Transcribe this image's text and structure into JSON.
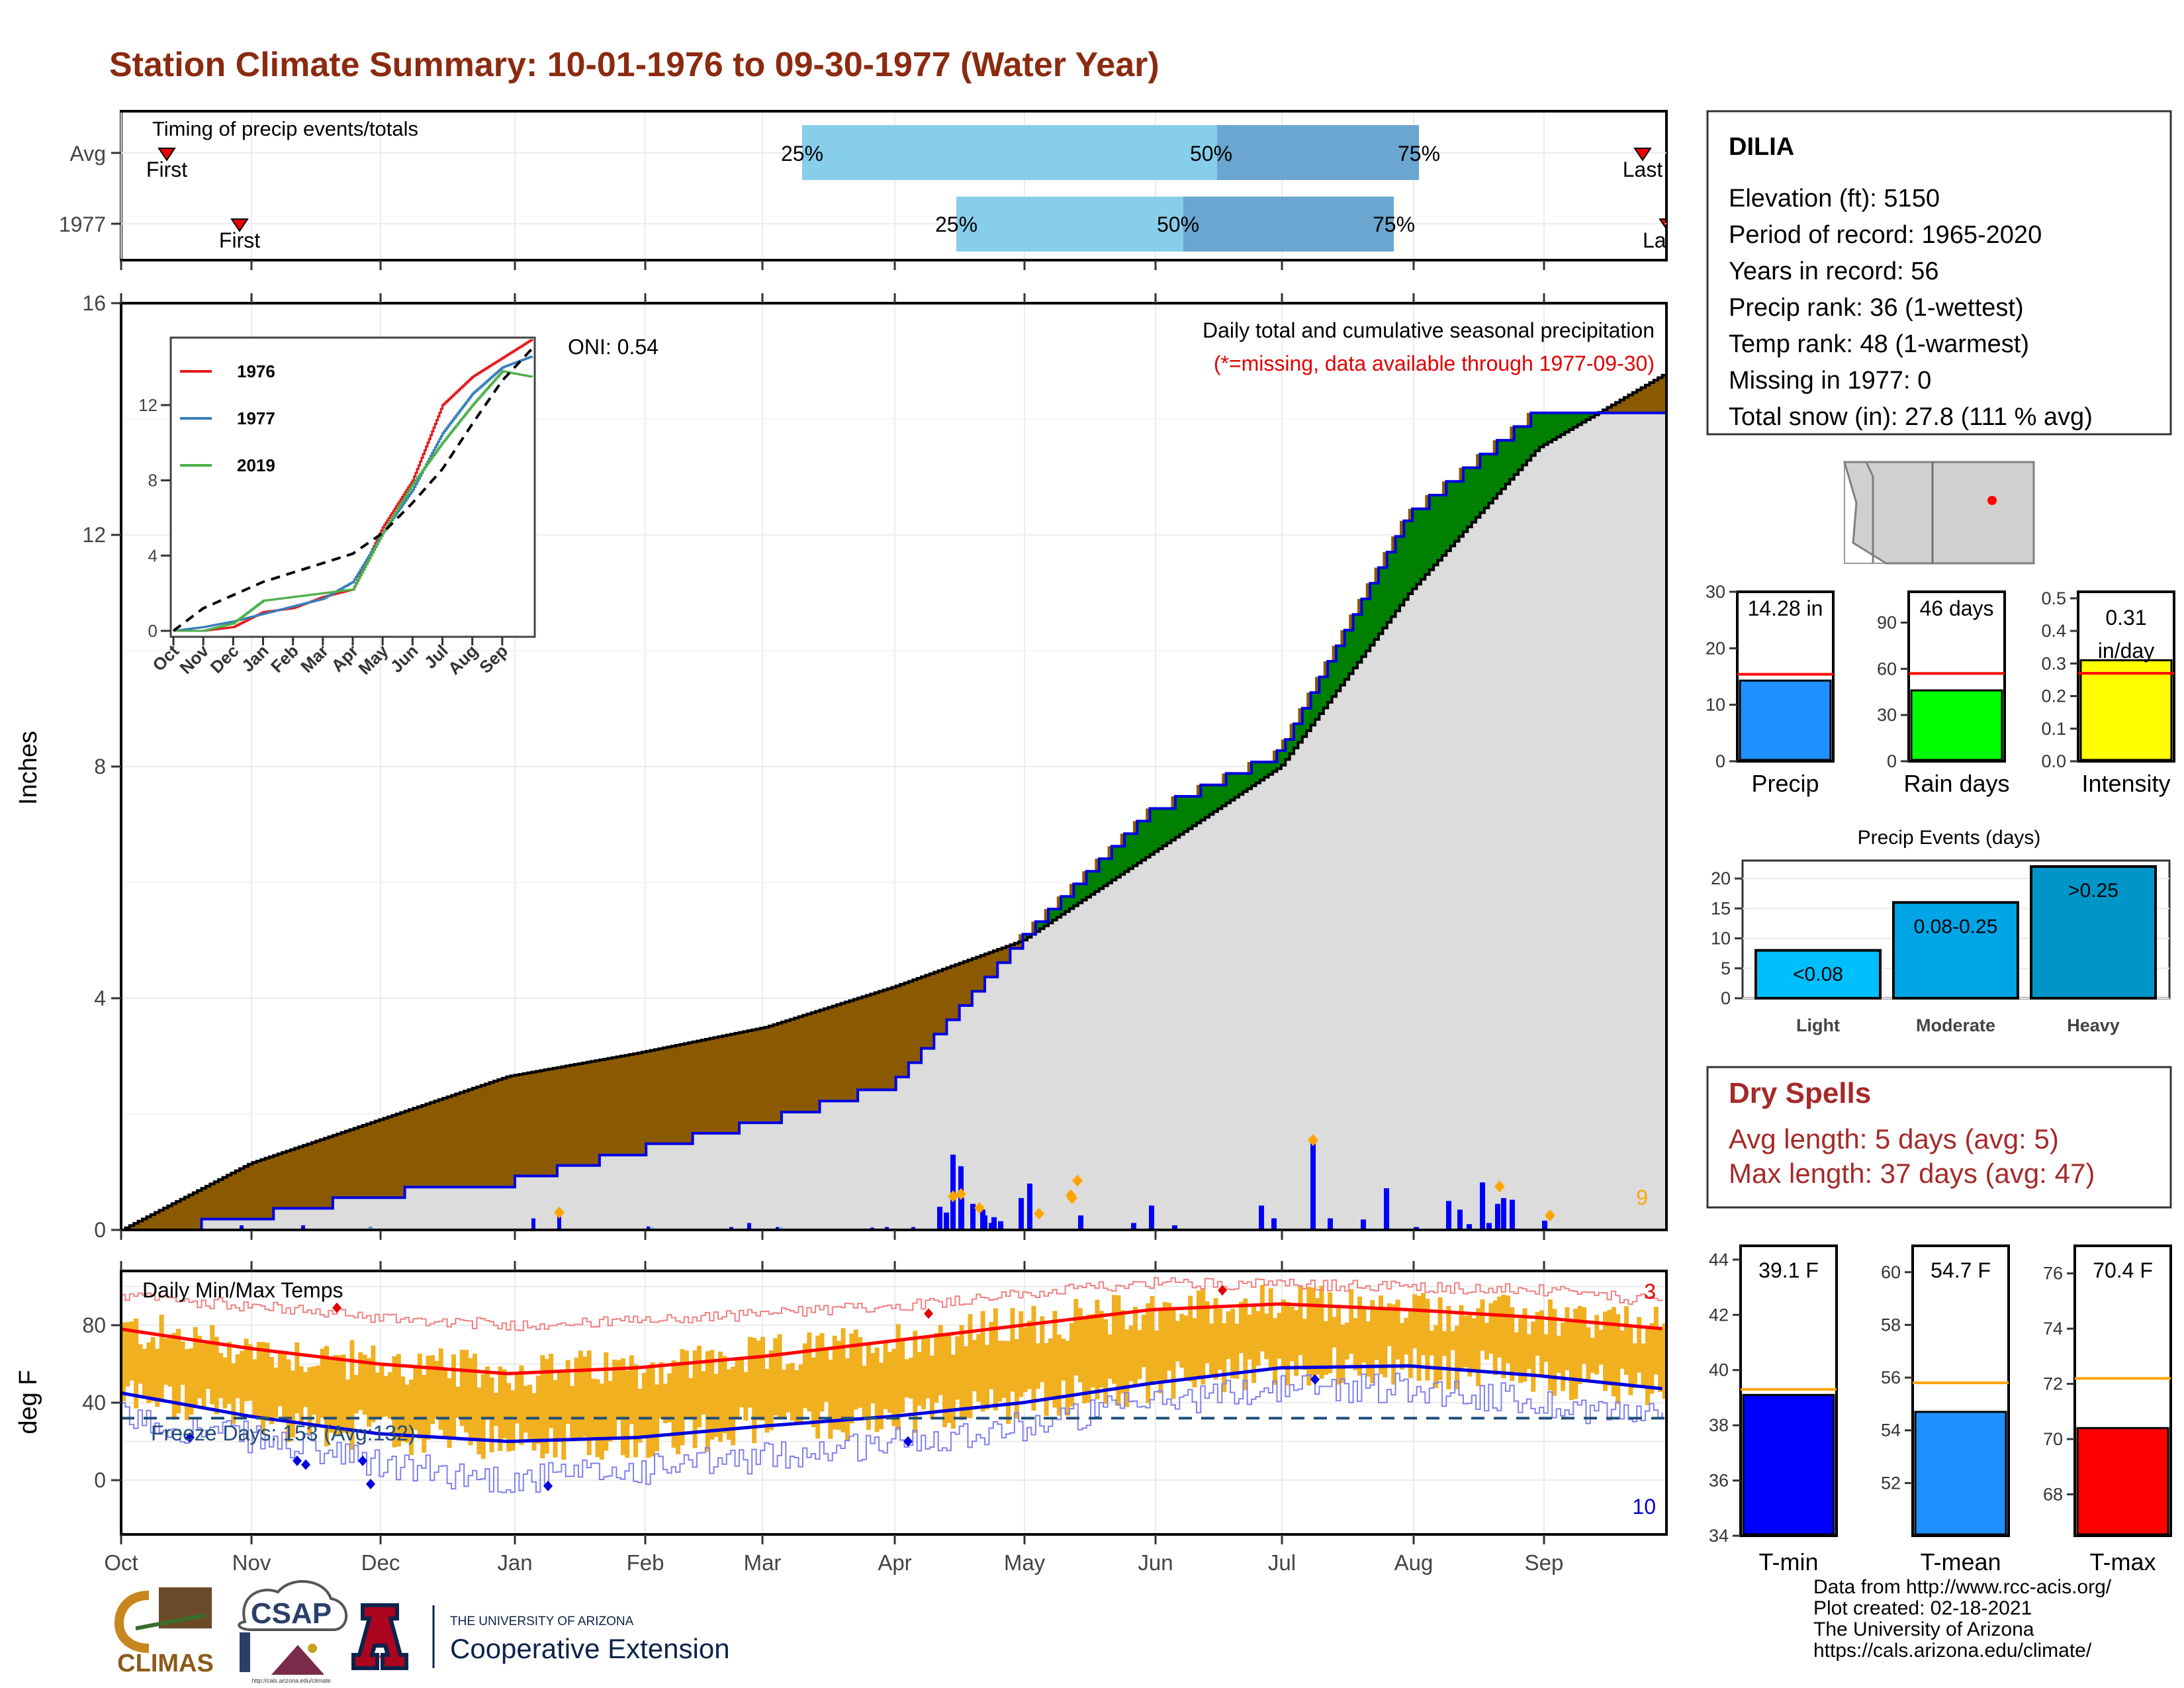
{
  "title": "Station Climate Summary: 10-01-1976 to 09-30-1977 (Water Year)",
  "timing": {
    "label": "Timing of precip events/totals",
    "rows": [
      "Avg",
      "1977"
    ],
    "avg": {
      "first": "First",
      "last": "Last",
      "p25": "25%",
      "p50": "50%",
      "p75": "75%"
    },
    "year": {
      "first": "First",
      "last": "Last",
      "p25": "25%",
      "p50": "50%",
      "p75": "75%"
    }
  },
  "precip_panel": {
    "ylabel": "Inches",
    "oni": "ONI: 0.54",
    "header": "Daily total and cumulative seasonal precipitation",
    "subheader": "(*=missing, data available through 1977-09-30)",
    "count": "9",
    "yticks": [
      "0",
      "4",
      "8",
      "12",
      "16"
    ]
  },
  "inset": {
    "yticks": [
      "0",
      "4",
      "8",
      "12"
    ],
    "xticks": [
      "Oct",
      "Nov",
      "Dec",
      "Jan",
      "Feb",
      "Mar",
      "Apr",
      "May",
      "Jun",
      "Jul",
      "Aug",
      "Sep"
    ],
    "legend": [
      "1976",
      "1977",
      "2019"
    ],
    "colors": [
      "#e41a1c",
      "#377eb8",
      "#4daf4a"
    ]
  },
  "temp_panel": {
    "label": "Daily Min/Max Temps",
    "ylabel": "deg F",
    "freeze": "Freeze Days: 153 (Avg:132)",
    "count_hi": "3",
    "count_lo": "10",
    "yticks": [
      "0",
      "40",
      "80"
    ]
  },
  "months": [
    "Oct",
    "Nov",
    "Dec",
    "Jan",
    "Feb",
    "Mar",
    "Apr",
    "May",
    "Jun",
    "Jul",
    "Aug",
    "Sep"
  ],
  "station": {
    "name": "DILIA",
    "lines": [
      "Elevation (ft): 5150",
      "Period of record: 1965-2020",
      "Years in record: 56",
      "Precip rank: 36 (1-wettest)",
      "Temp rank: 48 (1-warmest)",
      "Missing in 1977: 0",
      "Total snow (in): 27.8 (111 % avg)"
    ]
  },
  "mini_bars": [
    {
      "label": "Precip",
      "value_text": "14.28 in",
      "value": 14.28,
      "avg": 15.4,
      "max": 30,
      "ticks": [
        "0",
        "10",
        "20",
        "30"
      ],
      "color": "#1e90ff"
    },
    {
      "label": "Rain days",
      "value_text": "46 days",
      "value": 46,
      "avg": 57,
      "max": 110,
      "ticks": [
        "0",
        "30",
        "60",
        "90"
      ],
      "color": "#00ff00"
    },
    {
      "label": "Intensity",
      "value_text": "0.31 in/day",
      "value_line1": "0.31",
      "value_line2": "in/day",
      "value": 0.31,
      "avg": 0.27,
      "max": 0.52,
      "ticks": [
        "0.0",
        "0.1",
        "0.2",
        "0.3",
        "0.4",
        "0.5"
      ],
      "color": "#ffff00"
    }
  ],
  "events": {
    "title": "Precip Events (days)",
    "categories": [
      "Light",
      "Moderate",
      "Heavy"
    ],
    "labels": [
      "<0.08",
      "0.08-0.25",
      ">0.25"
    ],
    "values": [
      8,
      16,
      22
    ],
    "colors": [
      "#00bfff",
      "#00a5e6",
      "#0095c8"
    ],
    "yticks": [
      "0",
      "5",
      "10",
      "15",
      "20"
    ]
  },
  "dry_spells": {
    "title": "Dry Spells",
    "avg": "Avg length: 5 days (avg: 5)",
    "max": "Max length: 37 days (avg: 47)"
  },
  "temp_bars": [
    {
      "label": "T-min",
      "value_text": "39.1 F",
      "value": 39.1,
      "avg": 39.3,
      "min": 34,
      "max": 44.5,
      "ticks": [
        "34",
        "36",
        "38",
        "40",
        "42",
        "44"
      ],
      "color": "#0000ff"
    },
    {
      "label": "T-mean",
      "value_text": "54.7 F",
      "value": 54.7,
      "avg": 55.8,
      "min": 50,
      "max": 61,
      "ticks": [
        "52",
        "54",
        "56",
        "58",
        "60"
      ],
      "color": "#1e90ff"
    },
    {
      "label": "T-max",
      "value_text": "70.4 F",
      "value": 70.4,
      "avg": 72.2,
      "min": 66.5,
      "max": 77,
      "ticks": [
        "68",
        "70",
        "72",
        "74",
        "76"
      ],
      "color": "#ff0000"
    }
  ],
  "footer": [
    "Data from http://www.rcc-acis.org/",
    "Plot created: 02-18-2021",
    "The University of Arizona",
    "https://cals.arizona.edu/climate/"
  ],
  "logos": {
    "climas": "CLIMAS",
    "csap": "CSAP",
    "csap_url": "http://cals.arizona.edu/climate",
    "ua_small": "THE UNIVERSITY OF ARIZONA",
    "ua_big": "Cooperative Extension",
    "ua_letter": "A"
  },
  "chart_data": [
    {
      "type": "area",
      "title": "Daily total and cumulative seasonal precipitation",
      "ylabel": "Inches",
      "ylim": [
        0,
        16
      ],
      "x": [
        "Oct",
        "Nov",
        "Dec",
        "Jan",
        "Feb",
        "Mar",
        "Apr",
        "May",
        "Jun",
        "Jul",
        "Aug",
        "Sep",
        "end"
      ],
      "series": [
        {
          "name": "1977",
          "values": [
            0,
            0.3,
            0.7,
            0.9,
            1.45,
            1.95,
            2.6,
            5.1,
            7.3,
            8.3,
            12.4,
            14.2,
            14.28
          ]
        },
        {
          "values": [
            0,
            1.15,
            1.9,
            2.65,
            3.05,
            3.5,
            4.2,
            5.0,
            6.5,
            8.0,
            11.0,
            13.5,
            14.8
          ]
        }
      ]
    },
    {
      "type": "line",
      "xlabel": "",
      "ylabel": "",
      "ylim": [
        0,
        16
      ],
      "x": [
        "Oct",
        "Nov",
        "Dec",
        "Jan",
        "Feb",
        "Mar",
        "Apr",
        "May",
        "Jun",
        "Jul",
        "Aug",
        "Sep",
        "end"
      ],
      "series": [
        {
          "name": "1976",
          "values": [
            0,
            0,
            0.2,
            1,
            1.2,
            1.8,
            2.2,
            5.5,
            8,
            12,
            13.5,
            14.5,
            15.5
          ]
        },
        {
          "name": "1977",
          "values": [
            0,
            0.2,
            0.5,
            0.9,
            1.3,
            1.7,
            2.6,
            5.2,
            7.5,
            10.5,
            12.6,
            14,
            14.6
          ]
        },
        {
          "name": "2019",
          "values": [
            0,
            0,
            0.4,
            1.6,
            1.8,
            2.0,
            2.2,
            5.2,
            7.8,
            10,
            12,
            13.8,
            13.5
          ]
        },
        {
          "values": [
            0,
            1.2,
            1.9,
            2.6,
            3.1,
            3.6,
            4.1,
            5.2,
            6.8,
            8.6,
            11,
            13.3,
            15
          ]
        }
      ]
    },
    {
      "type": "line",
      "title": "Daily Min/Max Temps",
      "ylabel": "deg F",
      "ylim": [
        -28,
        108
      ],
      "x": [
        "Oct",
        "Nov",
        "Dec",
        "Jan",
        "Feb",
        "Mar",
        "Apr",
        "May",
        "Jun",
        "Jul",
        "Aug",
        "Sep",
        "end"
      ],
      "series": [
        {
          "values": [
            78,
            68,
            60,
            55,
            58,
            64,
            72,
            80,
            88,
            91,
            88,
            84,
            78
          ]
        },
        {
          "values": [
            45,
            33,
            24,
            20,
            22,
            28,
            33,
            40,
            50,
            58,
            59,
            54,
            47
          ]
        },
        {
          "values": [
            95,
            90,
            84,
            80,
            82,
            86,
            90,
            96,
            102,
            101,
            100,
            98,
            92
          ]
        },
        {
          "values": [
            32,
            22,
            8,
            0,
            5,
            12,
            20,
            28,
            40,
            48,
            48,
            40,
            32
          ]
        }
      ],
      "reference_line": 32
    }
  ]
}
